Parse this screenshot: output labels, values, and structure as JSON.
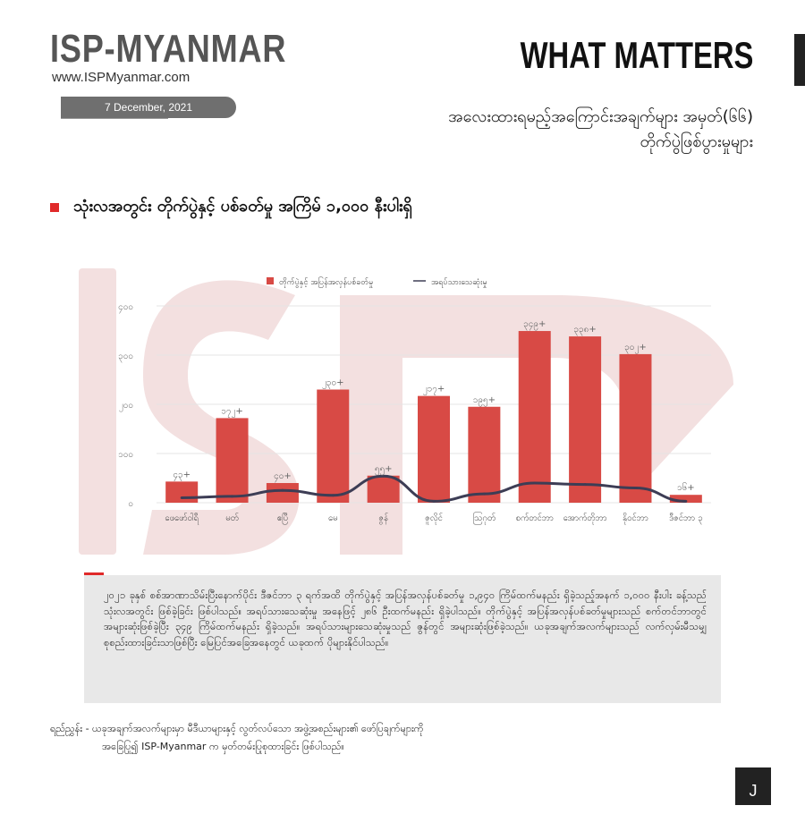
{
  "header": {
    "brand": "ISP-MYANMAR",
    "url": "www.ISPMyanmar.com",
    "date": "7 December, 2021",
    "title": "WHAT MATTERS",
    "subtitle_line1": "အလေးထားရမည့်အကြောင်းအချက်များ အမှတ်(၆၆)",
    "subtitle_line2": "တိုက်ပွဲဖြစ်ပွားမှုများ"
  },
  "section": {
    "title": "သုံးလအတွင်း တိုက်ပွဲနှင့် ပစ်ခတ်မှု အကြိမ် ၁,၀၀၀ နီးပါးရှိ"
  },
  "colors": {
    "bar": "#d84a45",
    "line": "#3d3d55",
    "accent": "#e02a2a",
    "watermark": "#f1dcdc"
  },
  "chart_data": {
    "type": "bar",
    "legend": {
      "placement": "top",
      "bar_label": "တိုက်ပွဲနှင့် အပြန်အလှန်ပစ်ခတ်မှု",
      "line_label": "အရပ်သားသေဆုံးမှု"
    },
    "categories": [
      "ဖေဖော်ဝါရီ",
      "မတ်",
      "ဧပြီ",
      "မေ",
      "ဇွန်",
      "ဇူလိုင်",
      "ဩဂုတ်",
      "စက်တင်ဘာ",
      "အောက်တိုဘာ",
      "နိုဝင်ဘာ",
      "ဒီဇင်ဘာ ၃"
    ],
    "series": [
      {
        "name": "တိုက်ပွဲနှင့် အပြန်အလှန်ပစ်ခတ်မှု",
        "type": "bar",
        "values": [
          43,
          172,
          40,
          230,
          55,
          217,
          195,
          349,
          338,
          302,
          16
        ],
        "labels": [
          "၄၃+",
          "၁၇၂+",
          "၄၀+",
          "၂၃၀+",
          "၅၅+",
          "၂၁၇+",
          "၁၉၅+",
          "၃၄၉+",
          "၃၃၈+",
          "၃၀၂+",
          "၁၆+"
        ]
      },
      {
        "name": "အရပ်သားသေဆုံးမှု",
        "type": "line",
        "values": [
          10,
          13,
          25,
          15,
          54,
          3,
          18,
          40,
          37,
          30,
          3
        ]
      }
    ],
    "y_ticks": [
      "၀",
      "၁၀၀",
      "၂၀၀",
      "၃၀၀",
      "၄၀၀"
    ],
    "y_tick_values": [
      0,
      100,
      200,
      300,
      400
    ],
    "ylim": [
      0,
      400
    ],
    "grid": true
  },
  "note": {
    "text": "၂၀၂၁ ခုနှစ် စစ်အာဏာသိမ်းပြီးနောက်ပိုင်း ဒီဇင်ဘာ ၃ ရက်အထိ တိုက်ပွဲနှင့် အပြန်အလှန်ပစ်ခတ်မှု ၁,၉၄၀ ကြိမ်ထက်မနည်း ရှိခဲ့သည့်အနက် ၁,၀၀၀ နီးပါး ခန့်သည် သုံးလအတွင်း ဖြစ်ခဲ့ခြင်း ဖြစ်ပါသည်။ အရပ်သားသေဆုံးမှု အနေဖြင့် ၂၈၆ ဦးထက်မနည်း ရှိခဲ့ပါသည်။ တိုက်ပွဲနှင့် အပြန်အလှန်ပစ်ခတ်မှုများသည် စက်တင်ဘာတွင် အများဆုံးဖြစ်ခဲ့ပြီး ၃၄၉ ကြိမ်ထက်မနည်း ရှိခဲ့သည်။ အရပ်သားများသေဆုံးမှုသည် ဇွန်တွင် အများဆုံးဖြစ်ခဲ့သည်။ ယခုအချက်အလက်များသည် လက်လှမ်းမီသမျှ စုစည်းထားခြင်းသာဖြစ်ပြီး မြေပြင်အခြေအနေတွင် ယခုထက် ပိုများနိုင်ပါသည်။"
  },
  "source": {
    "line1": "ရည်ညွှန်း -  ယခုအချက်အလက်များမှာ မီဒီယာများနှင့် လွတ်လပ်သော အဖွဲ့အစည်းများ၏ ဖော်ပြချက်များကို",
    "line2": "အခြေပြု၍ ISP-Myanmar က မှတ်တမ်းပြုစုထားခြင်း ဖြစ်ပါသည်။"
  },
  "page": {
    "marker": "J"
  }
}
